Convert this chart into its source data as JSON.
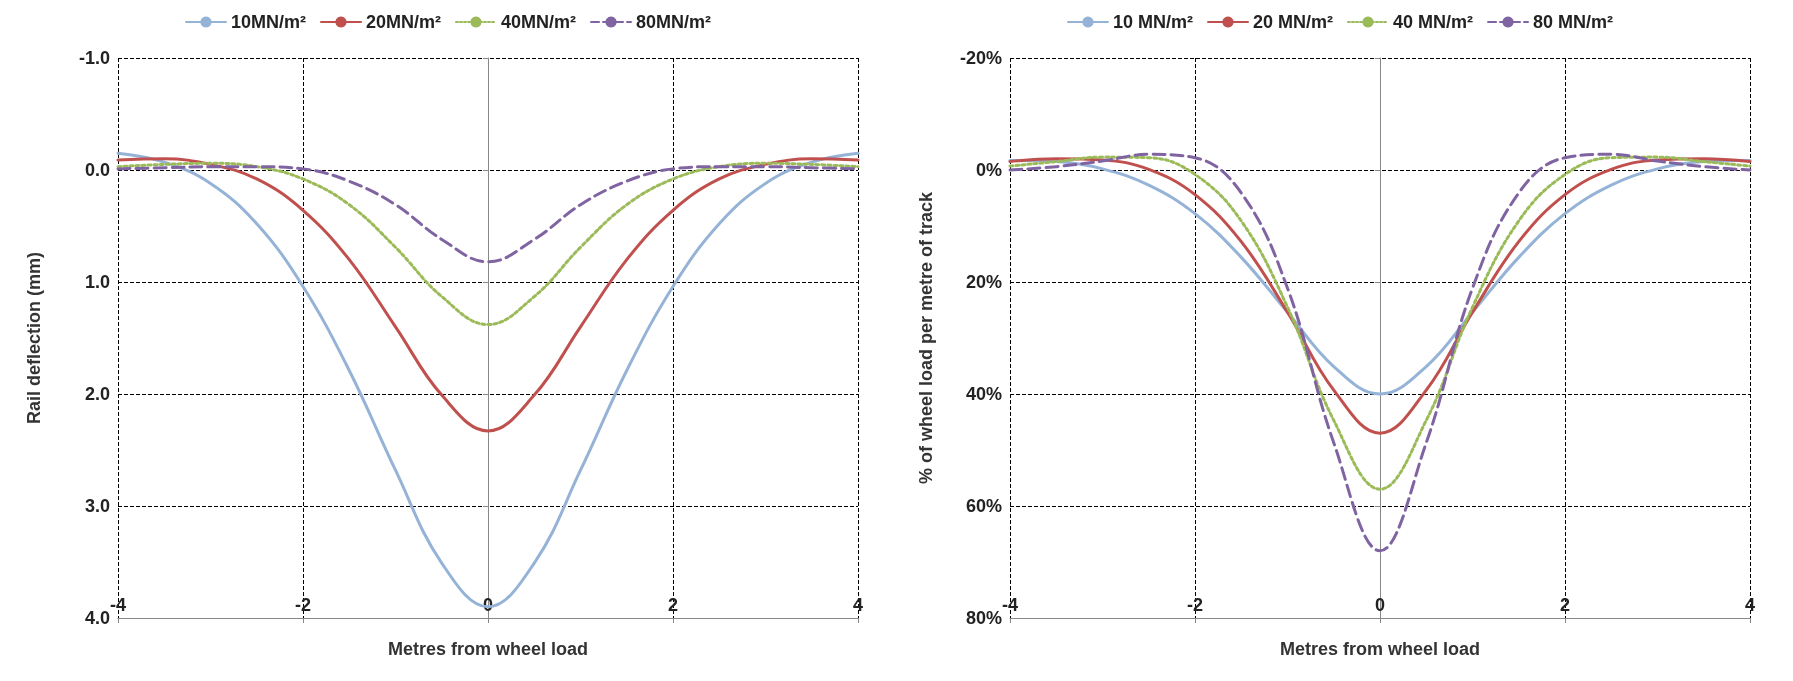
{
  "chart_data": [
    {
      "type": "line",
      "xlabel": "Metres from wheel load",
      "ylabel": "Rail deflection (mm)",
      "x": [
        -4,
        -3.5,
        -3,
        -2.5,
        -2,
        -1.5,
        -1,
        -0.5,
        0,
        0.5,
        1,
        1.5,
        2,
        2.5,
        3,
        3.5,
        4
      ],
      "xlim": [
        -4,
        4
      ],
      "xticks": [
        -4,
        -2,
        0,
        2,
        4
      ],
      "ylim": [
        4,
        -1
      ],
      "yticks": [
        {
          "value": -1,
          "label": "-1.0"
        },
        {
          "value": 0,
          "label": "0.0"
        },
        {
          "value": 1,
          "label": "1.0"
        },
        {
          "value": 2,
          "label": "2.0"
        },
        {
          "value": 3,
          "label": "3.0"
        },
        {
          "value": 4,
          "label": "4.0"
        }
      ],
      "grid": true,
      "legend": "top",
      "series": [
        {
          "name": "10MN/m²",
          "color": "#95b3d7",
          "line_style": "solid",
          "values": [
            -0.15,
            -0.07,
            0.12,
            0.48,
            1.04,
            1.79,
            2.68,
            3.51,
            3.9,
            3.51,
            2.68,
            1.79,
            1.04,
            0.48,
            0.12,
            -0.07,
            -0.15
          ]
        },
        {
          "name": "20MN/m²",
          "color": "#c0504d",
          "line_style": "solid",
          "values": [
            -0.09,
            -0.1,
            -0.05,
            0.08,
            0.36,
            0.8,
            1.4,
            2.01,
            2.33,
            2.01,
            1.4,
            0.8,
            0.36,
            0.08,
            -0.05,
            -0.1,
            -0.09
          ]
        },
        {
          "name": "40MN/m²",
          "color": "#9bbb59",
          "line_style": "dotted",
          "values": [
            -0.03,
            -0.05,
            -0.06,
            -0.03,
            0.08,
            0.31,
            0.69,
            1.13,
            1.38,
            1.13,
            0.69,
            0.31,
            0.08,
            -0.03,
            -0.06,
            -0.05,
            -0.03
          ]
        },
        {
          "name": "80MN/m²",
          "color": "#8064a2",
          "line_style": "dashed",
          "values": [
            -0.01,
            -0.02,
            -0.03,
            -0.03,
            -0.01,
            0.1,
            0.31,
            0.62,
            0.82,
            0.62,
            0.31,
            0.1,
            -0.01,
            -0.03,
            -0.03,
            -0.02,
            -0.01
          ]
        }
      ]
    },
    {
      "type": "line",
      "xlabel": "Metres from wheel load",
      "ylabel": "% of wheel load per metre of track",
      "x": [
        -4,
        -3.5,
        -3,
        -2.5,
        -2,
        -1.5,
        -1,
        -0.5,
        0,
        0.5,
        1,
        1.5,
        2,
        2.5,
        3,
        3.5,
        4
      ],
      "xlim": [
        -4,
        4
      ],
      "xticks": [
        -4,
        -2,
        0,
        2,
        4
      ],
      "ylim": [
        80,
        -20
      ],
      "yticks": [
        {
          "value": -20,
          "label": "-20%"
        },
        {
          "value": 0,
          "label": "0%"
        },
        {
          "value": 20,
          "label": "20%"
        },
        {
          "value": 40,
          "label": "40%"
        },
        {
          "value": 60,
          "label": "60%"
        },
        {
          "value": 80,
          "label": "80%"
        }
      ],
      "grid": true,
      "legend": "top",
      "series": [
        {
          "name": "10 MN/m²",
          "color": "#95b3d7",
          "line_style": "solid",
          "values": [
            -1.7,
            -1.5,
            -0.2,
            2.7,
            7.8,
            15.6,
            25.4,
            35.1,
            40,
            35.1,
            25.4,
            15.6,
            7.8,
            2.7,
            -0.2,
            -1.5,
            -1.7
          ]
        },
        {
          "name": "20 MN/m²",
          "color": "#c0504d",
          "line_style": "solid",
          "values": [
            -1.5,
            -2,
            -1.8,
            -0.1,
            4.4,
            12.8,
            25.4,
            39.3,
            47,
            39.3,
            25.4,
            12.8,
            4.4,
            -0.1,
            -1.8,
            -2,
            -1.5
          ]
        },
        {
          "name": "40 MN/m²",
          "color": "#9bbb59",
          "line_style": "dotted",
          "values": [
            -0.7,
            -1.5,
            -2.3,
            -2.2,
            0.8,
            9.1,
            24.5,
            44.7,
            57,
            44.7,
            24.5,
            9.1,
            0.8,
            -2.2,
            -2.3,
            -1.5,
            -0.7
          ]
        },
        {
          "name": "80 MN/m²",
          "color": "#8064a2",
          "line_style": "dashed",
          "values": [
            0,
            -0.6,
            -1.6,
            -2.8,
            -2.2,
            4.1,
            21.1,
            48.7,
            68,
            48.7,
            21.1,
            4.1,
            -2.2,
            -2.8,
            -1.6,
            -0.6,
            0
          ]
        }
      ]
    }
  ]
}
